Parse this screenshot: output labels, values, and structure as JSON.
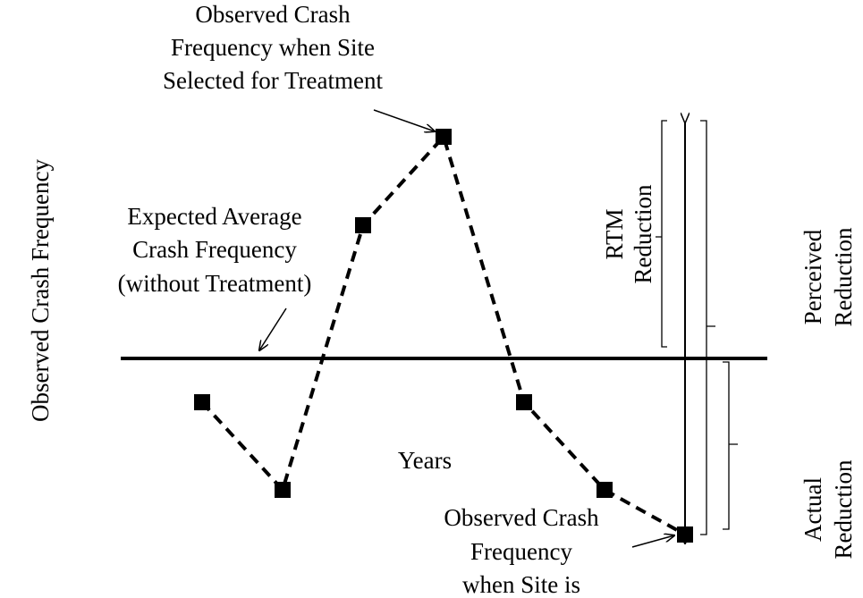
{
  "y_axis_label": "Observed Crash Frequency",
  "x_axis_label": "Years",
  "annotations": {
    "selected": [
      "Observed Crash",
      "Frequency when Site",
      "Selected for Treatment"
    ],
    "expected": [
      "Expected Average",
      "Crash Frequency",
      "(without Treatment)"
    ],
    "after": [
      "Observed Crash",
      "Frequency",
      "when Site is"
    ]
  },
  "braces": {
    "rtm": [
      "RTM",
      "Reduction"
    ],
    "perceived": [
      "Perceived",
      "Reduction"
    ],
    "actual": [
      "Actual",
      "Reduction"
    ]
  }
}
